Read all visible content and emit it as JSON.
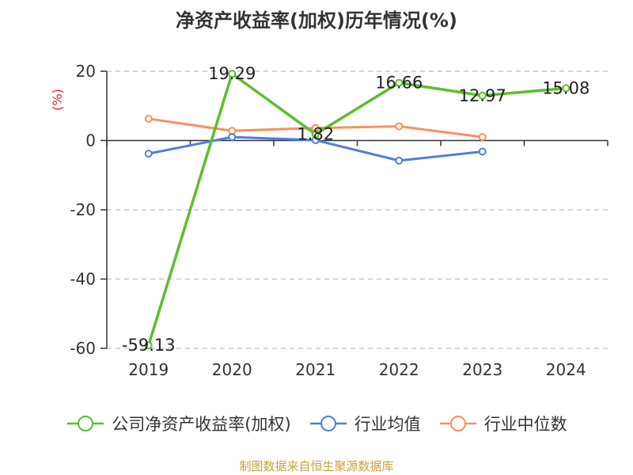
{
  "chart_data": {
    "type": "line",
    "title": "净资产收益率(加权)历年情况(%)",
    "ylabel": "(%)",
    "xlabel": "",
    "categories": [
      "2019",
      "2020",
      "2021",
      "2022",
      "2023",
      "2024"
    ],
    "ylim": [
      -60,
      20
    ],
    "yticks": [
      20,
      0,
      -20,
      -40,
      -60
    ],
    "grid": true,
    "legend_position": "bottom",
    "series": [
      {
        "name": "公司净资产收益率(加权)",
        "color": "#5cbf2a",
        "values": [
          -59.13,
          19.29,
          1.82,
          16.66,
          12.97,
          15.08
        ],
        "labels": [
          "-59.13",
          "19.29",
          "1.82",
          "16.66",
          "12.97",
          "15.08"
        ]
      },
      {
        "name": "行业均值",
        "color": "#4f7fd9",
        "values": [
          -3.8,
          1.0,
          0.1,
          -5.8,
          -3.2,
          null
        ]
      },
      {
        "name": "行业中位数",
        "color": "#f7915a",
        "values": [
          6.3,
          2.8,
          3.6,
          4.1,
          1.0,
          null
        ]
      }
    ]
  },
  "source": "制图数据来自恒生聚源数据库"
}
